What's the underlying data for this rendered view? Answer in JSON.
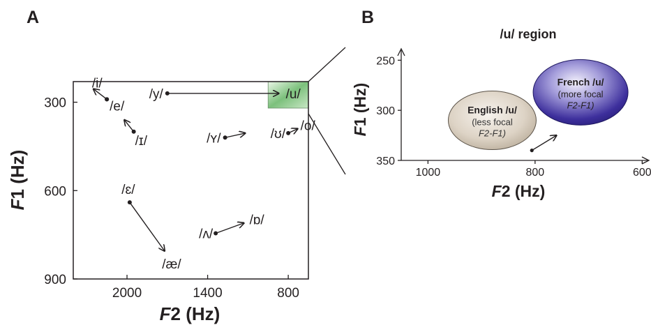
{
  "panel_a": {
    "label": "A"
  },
  "panel_b": {
    "label": "B"
  },
  "chart_data": [
    {
      "type": "scatter",
      "title": "",
      "x_axis": {
        "label": "F2 (Hz)",
        "reversed": true,
        "range": [
          2400,
          650
        ],
        "ticks": [
          2000,
          1400,
          800
        ]
      },
      "y_axis": {
        "label": "F1 (Hz)",
        "reversed": true,
        "range": [
          230,
          900
        ],
        "ticks": [
          300,
          600,
          900
        ]
      },
      "highlight_region": {
        "x": [
          950,
          650
        ],
        "y": [
          230,
          320
        ],
        "color": "#7cc07c"
      },
      "vowels": [
        {
          "symbol": "/i/",
          "from": {
            "F2": 2150,
            "F1": 290
          },
          "to": {
            "F2": 2250,
            "F1": 255
          }
        },
        {
          "symbol": "/e/",
          "from": {
            "F2": 2150,
            "F1": 290
          }
        },
        {
          "symbol": "/ɪ/",
          "from": {
            "F2": 1950,
            "F1": 400
          },
          "to": {
            "F2": 2020,
            "F1": 360
          }
        },
        {
          "symbol": "/y/",
          "from": {
            "F2": 1700,
            "F1": 270
          },
          "to": {
            "F2": 870,
            "F1": 270
          },
          "to_symbol": "/u/"
        },
        {
          "symbol": "/u/"
        },
        {
          "symbol": "/ʏ/",
          "from": {
            "F2": 1270,
            "F1": 420
          },
          "to": {
            "F2": 1120,
            "F1": 405
          }
        },
        {
          "symbol": "/ʊ/",
          "from": {
            "F2": 800,
            "F1": 405
          },
          "to": {
            "F2": 730,
            "F1": 390
          },
          "to_symbol": "/o/"
        },
        {
          "symbol": "/o/"
        },
        {
          "symbol": "/ɛ/",
          "from": {
            "F2": 1980,
            "F1": 640
          },
          "to": {
            "F2": 1720,
            "F1": 805
          },
          "to_symbol": "/æ/"
        },
        {
          "symbol": "/æ/"
        },
        {
          "symbol": "/ʌ/",
          "from": {
            "F2": 1340,
            "F1": 745
          },
          "to": {
            "F2": 1130,
            "F1": 710
          },
          "to_symbol": "/ɒ/"
        },
        {
          "symbol": "/ɒ/"
        }
      ]
    },
    {
      "type": "scatter",
      "title": "/u/ region",
      "x_axis": {
        "label": "F2 (Hz)",
        "reversed": true,
        "range": [
          1050,
          590
        ],
        "ticks": [
          1000,
          800,
          600
        ]
      },
      "y_axis": {
        "label": "F1 (Hz)",
        "reversed": true,
        "range": [
          240,
          350
        ],
        "ticks": [
          250,
          300,
          350
        ]
      },
      "ovals": [
        {
          "line1": "English /u/",
          "line2": "(less focal",
          "line3": "F2-F1)",
          "center": {
            "F2": 880,
            "F1": 310
          },
          "fill": "#ddd3c5"
        },
        {
          "line1": "French /u/",
          "line2": "(more focal",
          "line3": "F2-F1)",
          "center": {
            "F2": 715,
            "F1": 282
          },
          "fill": "#3d2f9c"
        }
      ],
      "shift_arrow": {
        "from": {
          "F2": 806,
          "F1": 340
        },
        "to": {
          "F2": 760,
          "F1": 325
        }
      }
    }
  ]
}
